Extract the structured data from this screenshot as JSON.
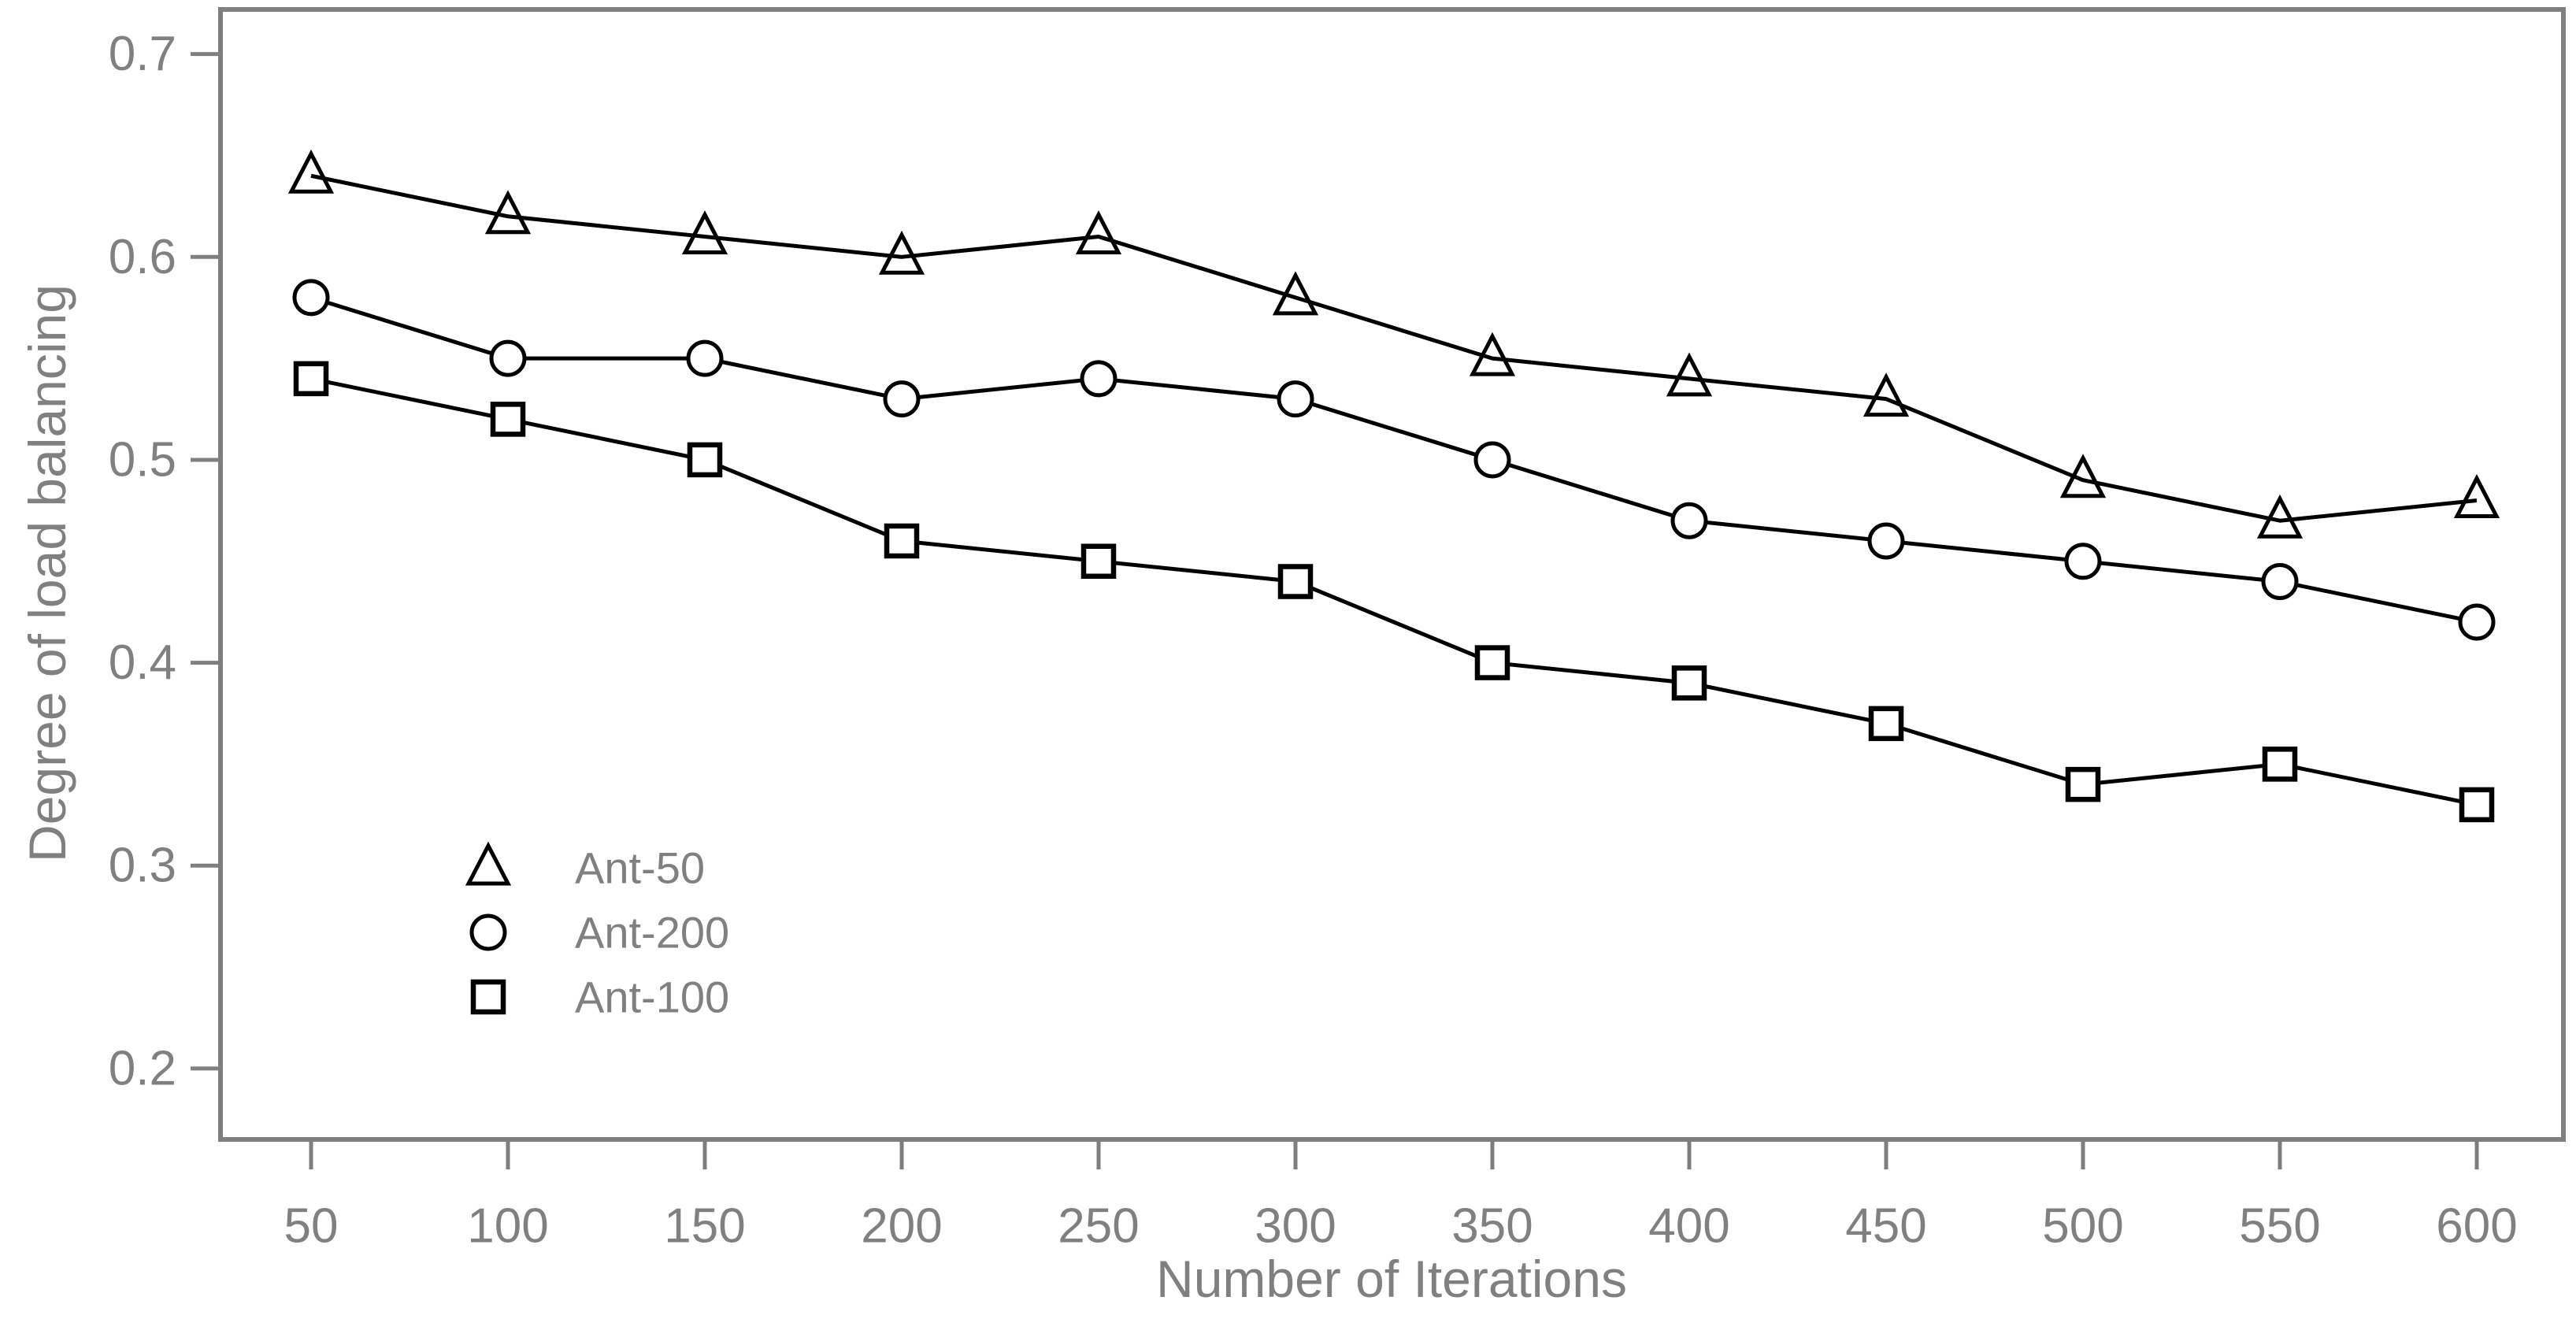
{
  "figure": {
    "background": "#ffffff"
  },
  "chart_data": {
    "type": "line",
    "title": "",
    "xlabel": "Number of Iterations",
    "ylabel": "Degree of load balancing",
    "x": [
      50,
      100,
      150,
      200,
      250,
      300,
      350,
      400,
      450,
      500,
      550,
      600
    ],
    "series": [
      {
        "name": "Ant-50",
        "marker": "triangle",
        "line_color": "#000000",
        "values": [
          0.64,
          0.62,
          0.61,
          0.6,
          0.61,
          0.58,
          0.55,
          0.54,
          0.53,
          0.49,
          0.47,
          0.48
        ]
      },
      {
        "name": "Ant-200",
        "marker": "circle",
        "line_color": "#000000",
        "values": [
          0.58,
          0.55,
          0.55,
          0.53,
          0.54,
          0.53,
          0.5,
          0.47,
          0.46,
          0.45,
          0.44,
          0.42
        ]
      },
      {
        "name": "Ant-100",
        "marker": "square",
        "line_color": "#000000",
        "values": [
          0.54,
          0.52,
          0.5,
          0.46,
          0.45,
          0.44,
          0.4,
          0.39,
          0.37,
          0.34,
          0.35,
          0.33
        ]
      }
    ],
    "xticks": [
      "50",
      "100",
      "150",
      "200",
      "250",
      "300",
      "350",
      "400",
      "450",
      "500",
      "550",
      "600"
    ],
    "xtick_values": [
      50,
      100,
      150,
      200,
      250,
      300,
      350,
      400,
      450,
      500,
      550,
      600
    ],
    "yticks": [
      "0.7",
      "0.6",
      "0.5",
      "0.4",
      "0.3",
      "0.2"
    ],
    "ytick_values": [
      0.7,
      0.6,
      0.5,
      0.4,
      0.3,
      0.2
    ],
    "xlim": [
      50,
      600
    ],
    "ylim": [
      0.165,
      0.722
    ],
    "grid": false,
    "legend_position": "lower-left",
    "legend_entries": [
      "Ant-50",
      "Ant-200",
      "Ant-100"
    ],
    "axis_color": "#7f7f7f",
    "tick_text_color": "#808080",
    "marker_fill": "#ffffff"
  }
}
